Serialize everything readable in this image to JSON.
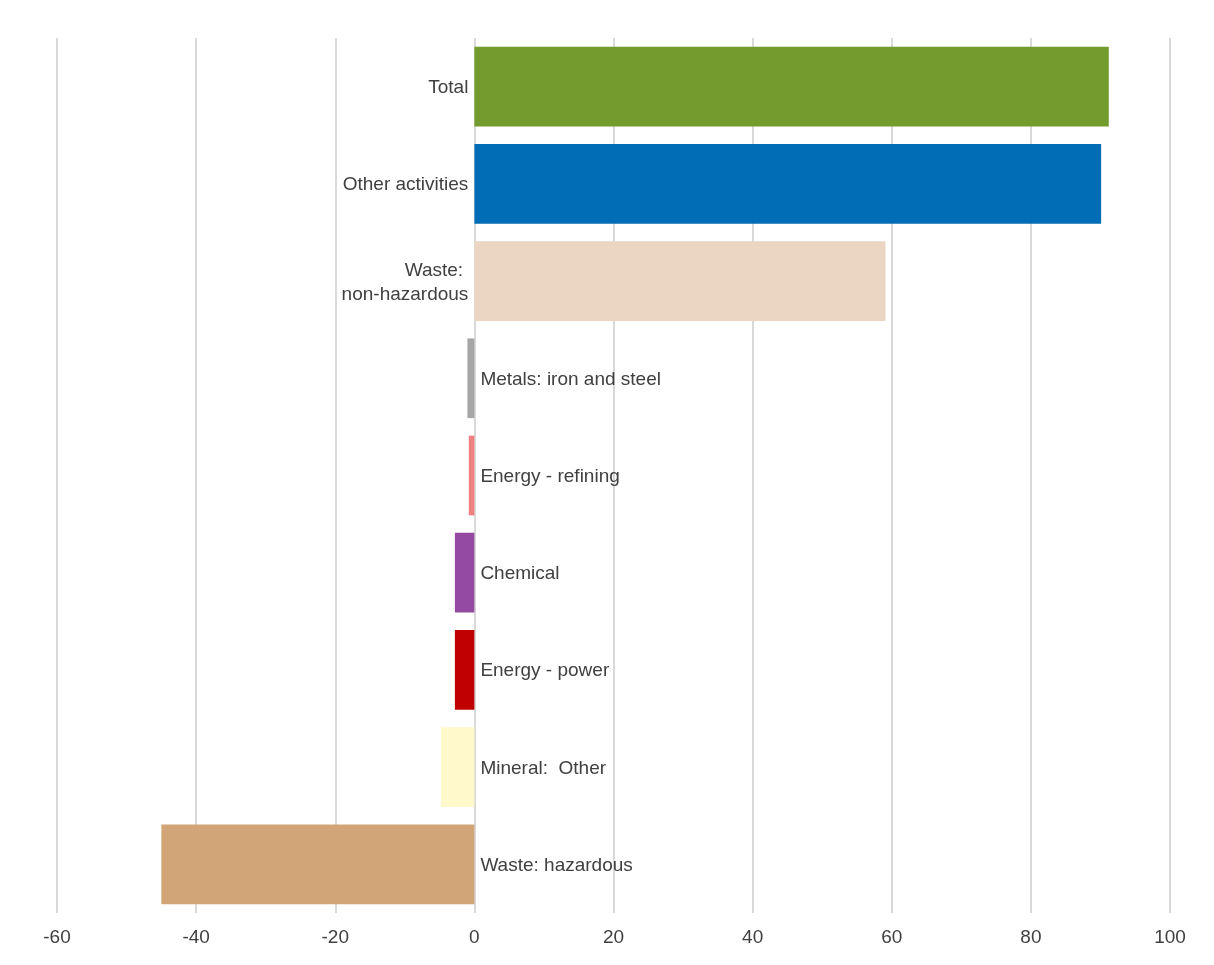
{
  "chart_data": {
    "type": "bar",
    "orientation": "horizontal",
    "categories": [
      "Total",
      "Other activities",
      "Waste: non-hazardous",
      "Metals: iron and steel",
      "Energy - refining",
      "Chemical",
      "Energy - power",
      "Mineral:  Other",
      "Waste: hazardous"
    ],
    "values": [
      91.2,
      90.1,
      59.1,
      -1.0,
      -0.8,
      -2.8,
      -2.8,
      -4.8,
      -45.0
    ],
    "colors": [
      "#739b2e",
      "#006db6",
      "#ead6c2",
      "#a6a6a6",
      "#f08080",
      "#934aa0",
      "#c00000",
      "#fff9cc",
      "#d1a577"
    ],
    "xlim": [
      -60,
      100
    ],
    "xticks": [
      -60,
      -40,
      -20,
      0,
      20,
      40,
      60,
      80,
      100
    ],
    "grid": "x"
  }
}
